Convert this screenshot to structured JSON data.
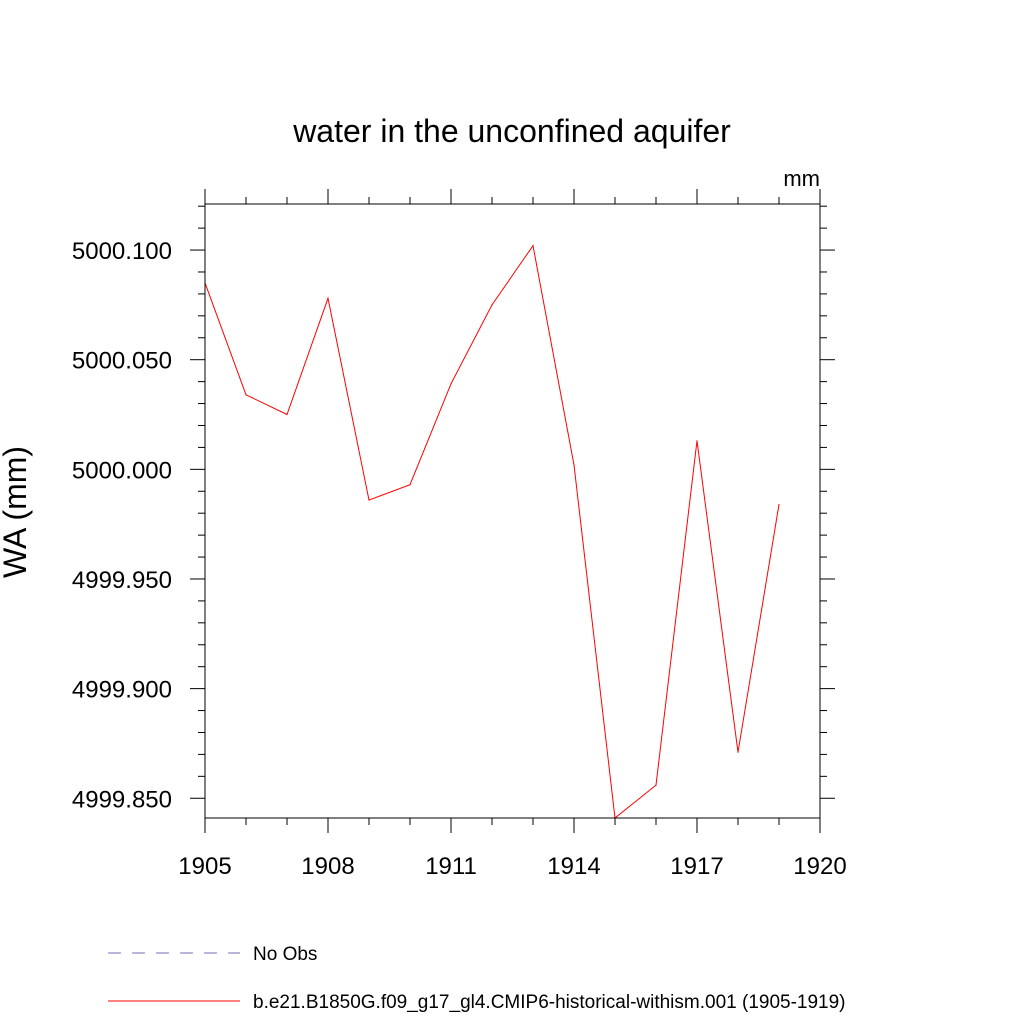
{
  "chart_data": {
    "type": "line",
    "title": "water in the unconfined aquifer",
    "units_label": "mm",
    "ylabel": "WA  (mm)",
    "xlabel": "",
    "xlim": [
      1905,
      1920
    ],
    "ylim": [
      4999.841,
      5000.121
    ],
    "x_ticks": [
      1905,
      1908,
      1911,
      1914,
      1917,
      1920
    ],
    "x_tick_labels": [
      "1905",
      "1908",
      "1911",
      "1914",
      "1917",
      "1920"
    ],
    "y_ticks": [
      4999.85,
      4999.9,
      4999.95,
      5000.0,
      5000.05,
      5000.1
    ],
    "y_tick_labels": [
      "4999.850",
      "4999.900",
      "4999.950",
      "5000.000",
      "5000.050",
      "5000.100"
    ],
    "grid": false,
    "legend_placement": "bottom",
    "series": [
      {
        "name": "No Obs",
        "color": "#7b68b8",
        "dash": "dashed",
        "x": [],
        "values": []
      },
      {
        "name": "b.e21.B1850G.f09_g17_gl4.CMIP6-historical-withism.001 (1905-1919)",
        "color": "#ff0000",
        "dash": "solid",
        "x": [
          1905,
          1906,
          1907,
          1908,
          1909,
          1910,
          1911,
          1912,
          1913,
          1914,
          1915,
          1916,
          1917,
          1918,
          1919
        ],
        "values": [
          5000.085,
          5000.034,
          5000.025,
          5000.078,
          4999.986,
          4999.993,
          5000.039,
          5000.075,
          5000.102,
          5000.002,
          4999.841,
          4999.856,
          5000.013,
          4999.871,
          4999.984
        ]
      }
    ]
  }
}
